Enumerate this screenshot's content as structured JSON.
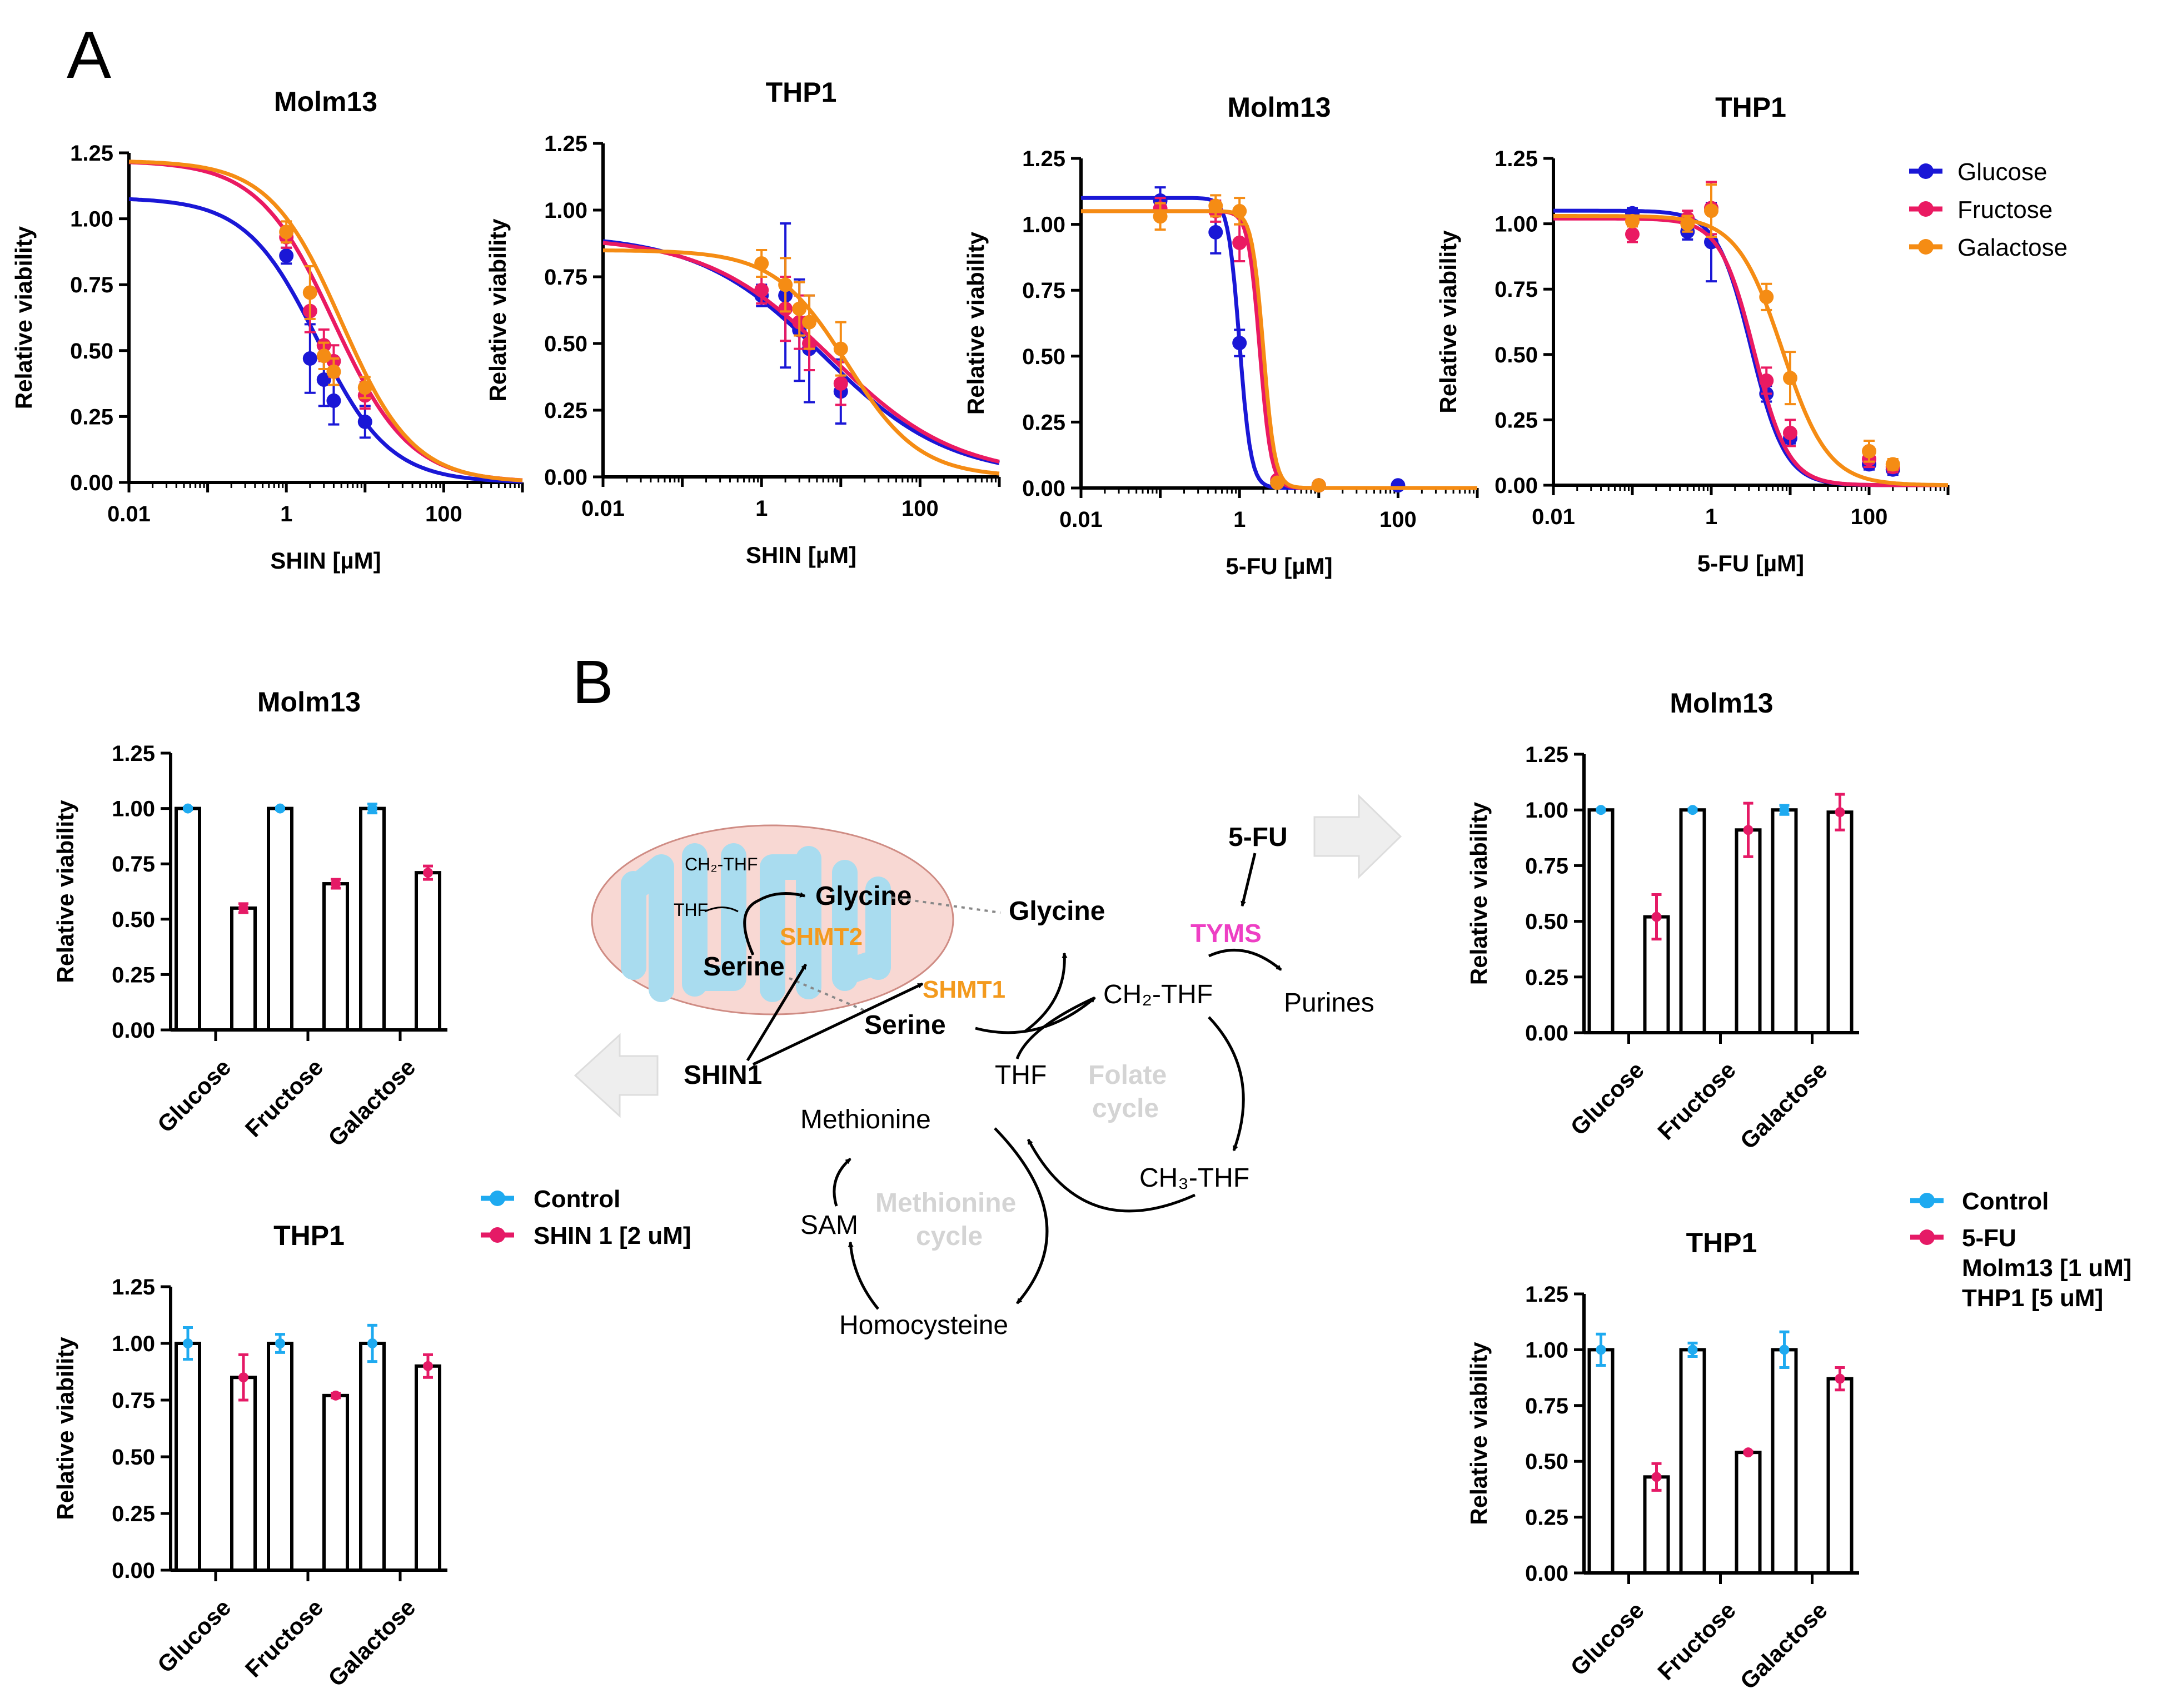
{
  "panel_labels": {
    "a": "A",
    "b": "B"
  },
  "colors": {
    "glucose": "#1a17d6",
    "fructose": "#ea1a62",
    "galactose": "#f58c14",
    "control": "#1eaaf0",
    "treatment": "#e51a66",
    "tyms": "#ee3fc4",
    "shmt": "#f39a1e",
    "faint": "#d4d4d4",
    "mito_fill": "#f8d8d3",
    "mito_edge": "#cf8c84",
    "cristae": "#a9dcef",
    "arrow_fill": "#eeeeee"
  },
  "chart_data": [
    {
      "type": "line",
      "title": "Molm13",
      "xlabel": "SHIN [µM]",
      "ylabel": "Relative viability",
      "xscale": "log",
      "xlim": [
        0.01,
        1000
      ],
      "ylim": [
        0,
        1.25
      ],
      "xticks": [
        0.01,
        1,
        100
      ],
      "xtick_labels": [
        "0.01",
        "1",
        "100"
      ],
      "yticks": [
        0,
        0.25,
        0.5,
        0.75,
        1.0,
        1.25
      ],
      "ytick_labels": [
        "0.00",
        "0.25",
        "0.50",
        "0.75",
        "1.00",
        "1.25"
      ],
      "series": [
        {
          "name": "Glucose",
          "color": "#1a17d6",
          "fit": {
            "top": 1.08,
            "bottom": 0.0,
            "ec50": 2.5,
            "hill": 0.95
          },
          "x": [
            1.0,
            2.0,
            3.0,
            4.0,
            10.0
          ],
          "y": [
            0.86,
            0.47,
            0.39,
            0.31,
            0.23
          ],
          "err": [
            0.03,
            0.13,
            0.1,
            0.09,
            0.06
          ]
        },
        {
          "name": "Fructose",
          "color": "#ea1a62",
          "fit": {
            "top": 1.22,
            "bottom": 0.0,
            "ec50": 4.0,
            "hill": 0.9
          },
          "x": [
            1.0,
            2.0,
            3.0,
            4.0,
            10.0
          ],
          "y": [
            0.93,
            0.65,
            0.52,
            0.46,
            0.33
          ],
          "err": [
            0.04,
            0.08,
            0.06,
            0.06,
            0.05
          ]
        },
        {
          "name": "Galactose",
          "color": "#f58c14",
          "fit": {
            "top": 1.22,
            "bottom": 0.0,
            "ec50": 5.0,
            "hill": 0.95
          },
          "x": [
            1.0,
            2.0,
            3.0,
            4.0,
            10.0
          ],
          "y": [
            0.95,
            0.72,
            0.48,
            0.42,
            0.36
          ],
          "err": [
            0.04,
            0.1,
            0.05,
            0.05,
            0.04
          ]
        }
      ]
    },
    {
      "type": "line",
      "title": "THP1",
      "xlabel": "SHIN [µM]",
      "ylabel": "Relative viability",
      "xscale": "log",
      "xlim": [
        0.01,
        1000
      ],
      "ylim": [
        0,
        1.25
      ],
      "xticks": [
        0.01,
        1,
        100
      ],
      "xtick_labels": [
        "0.01",
        "1",
        "100"
      ],
      "yticks": [
        0,
        0.25,
        0.5,
        0.75,
        1.0,
        1.25
      ],
      "ytick_labels": [
        "0.00",
        "0.25",
        "0.50",
        "0.75",
        "1.00",
        "1.25"
      ],
      "series": [
        {
          "name": "Glucose",
          "color": "#1a17d6",
          "fit": {
            "top": 0.91,
            "bottom": 0.0,
            "ec50": 6.0,
            "hill": 0.55
          },
          "x": [
            1.0,
            2.0,
            3.0,
            4.0,
            10.0
          ],
          "y": [
            0.68,
            0.68,
            0.55,
            0.48,
            0.32
          ],
          "err": [
            0.04,
            0.27,
            0.19,
            0.2,
            0.12
          ]
        },
        {
          "name": "Fructose",
          "color": "#ea1a62",
          "fit": {
            "top": 0.9,
            "bottom": 0.0,
            "ec50": 7.5,
            "hill": 0.55
          },
          "x": [
            1.0,
            2.0,
            3.0,
            4.0,
            10.0
          ],
          "y": [
            0.7,
            0.63,
            0.58,
            0.5,
            0.35
          ],
          "err": [
            0.05,
            0.12,
            0.1,
            0.1,
            0.08
          ]
        },
        {
          "name": "Galactose",
          "color": "#f58c14",
          "fit": {
            "top": 0.85,
            "bottom": 0.0,
            "ec50": 12.0,
            "hill": 0.95
          },
          "x": [
            1.0,
            2.0,
            3.0,
            4.0,
            10.0
          ],
          "y": [
            0.8,
            0.72,
            0.63,
            0.58,
            0.48
          ],
          "err": [
            0.05,
            0.1,
            0.1,
            0.1,
            0.1
          ]
        }
      ]
    },
    {
      "type": "line",
      "title": "Molm13",
      "xlabel": "5-FU [µM]",
      "ylabel": "Relative viability",
      "xscale": "log",
      "xlim": [
        0.01,
        1000
      ],
      "ylim": [
        0,
        1.25
      ],
      "xticks": [
        0.01,
        1,
        100
      ],
      "xtick_labels": [
        "0.01",
        "1",
        "100"
      ],
      "yticks": [
        0,
        0.25,
        0.5,
        0.75,
        1.0,
        1.25
      ],
      "ytick_labels": [
        "0.00",
        "0.25",
        "0.50",
        "0.75",
        "1.00",
        "1.25"
      ],
      "series": [
        {
          "name": "Glucose",
          "color": "#1a17d6",
          "fit": {
            "top": 1.1,
            "bottom": 0.0,
            "ec50": 1.0,
            "hill": 6.0
          },
          "x": [
            0.1,
            0.5,
            1.0,
            3.0,
            10.0,
            100.0
          ],
          "y": [
            1.09,
            0.97,
            0.55,
            0.02,
            0.01,
            0.01
          ],
          "err": [
            0.05,
            0.08,
            0.05,
            0.01,
            0.01,
            0.01
          ]
        },
        {
          "name": "Fructose",
          "color": "#ea1a62",
          "fit": {
            "top": 1.05,
            "bottom": 0.0,
            "ec50": 1.8,
            "hill": 6.0
          },
          "x": [
            0.1,
            0.5,
            1.0,
            3.0,
            10.0
          ],
          "y": [
            1.06,
            1.05,
            0.93,
            0.03,
            0.01
          ],
          "err": [
            0.04,
            0.04,
            0.07,
            0.01,
            0.01
          ]
        },
        {
          "name": "Galactose",
          "color": "#f58c14",
          "fit": {
            "top": 1.05,
            "bottom": 0.0,
            "ec50": 2.0,
            "hill": 6.0
          },
          "x": [
            0.1,
            0.5,
            1.0,
            3.0,
            10.0
          ],
          "y": [
            1.03,
            1.07,
            1.05,
            0.02,
            0.01
          ],
          "err": [
            0.05,
            0.04,
            0.05,
            0.01,
            0.01
          ]
        }
      ]
    },
    {
      "type": "line",
      "title": "THP1",
      "xlabel": "5-FU [µM]",
      "ylabel": "Relative viability",
      "xscale": "log",
      "xlim": [
        0.01,
        1000
      ],
      "ylim": [
        0,
        1.25
      ],
      "xticks": [
        0.01,
        1,
        100
      ],
      "xtick_labels": [
        "0.01",
        "1",
        "100"
      ],
      "yticks": [
        0,
        0.25,
        0.5,
        0.75,
        1.0,
        1.25
      ],
      "ytick_labels": [
        "0.00",
        "0.25",
        "0.50",
        "0.75",
        "1.00",
        "1.25"
      ],
      "series": [
        {
          "name": "Glucose",
          "color": "#1a17d6",
          "fit": {
            "top": 1.05,
            "bottom": 0.0,
            "ec50": 3.2,
            "hill": 2.0
          },
          "x": [
            0.1,
            0.5,
            1.0,
            5.0,
            10.0,
            100.0,
            200.0
          ],
          "y": [
            1.04,
            0.97,
            0.93,
            0.35,
            0.18,
            0.08,
            0.06
          ],
          "err": [
            0.02,
            0.03,
            0.15,
            0.03,
            0.02,
            0.02,
            0.02
          ]
        },
        {
          "name": "Fructose",
          "color": "#ea1a62",
          "fit": {
            "top": 1.02,
            "bottom": 0.0,
            "ec50": 3.5,
            "hill": 2.0
          },
          "x": [
            0.1,
            0.5,
            1.0,
            5.0,
            10.0,
            100.0,
            200.0
          ],
          "y": [
            0.96,
            1.02,
            1.06,
            0.4,
            0.2,
            0.1,
            0.07
          ],
          "err": [
            0.03,
            0.03,
            0.1,
            0.05,
            0.05,
            0.03,
            0.02
          ]
        },
        {
          "name": "Galactose",
          "color": "#f58c14",
          "fit": {
            "top": 1.03,
            "bottom": 0.0,
            "ec50": 8.0,
            "hill": 1.5
          },
          "x": [
            0.1,
            0.5,
            1.0,
            5.0,
            10.0,
            100.0,
            200.0
          ],
          "y": [
            1.01,
            1.0,
            1.05,
            0.72,
            0.41,
            0.13,
            0.08
          ],
          "err": [
            0.02,
            0.03,
            0.1,
            0.05,
            0.1,
            0.04,
            0.02
          ]
        }
      ]
    },
    {
      "type": "bar",
      "title": "Molm13",
      "ylabel": "Relative viability",
      "ylim": [
        0,
        1.25
      ],
      "yticks": [
        0,
        0.25,
        0.5,
        0.75,
        1.0,
        1.25
      ],
      "ytick_labels": [
        "0.00",
        "0.25",
        "0.50",
        "0.75",
        "1.00",
        "1.25"
      ],
      "categories": [
        "Glucose",
        "Fructose",
        "Galactose"
      ],
      "series": [
        {
          "name": "Control",
          "color": "#1eaaf0",
          "values": [
            1.0,
            1.0,
            1.0
          ],
          "err": [
            0.005,
            0.005,
            0.02
          ]
        },
        {
          "name": "SHIN 1 [2 uM]",
          "color": "#e51a66",
          "values": [
            0.55,
            0.66,
            0.71
          ],
          "err": [
            0.02,
            0.02,
            0.03
          ]
        }
      ]
    },
    {
      "type": "bar",
      "title": "THP1",
      "ylabel": "Relative viability",
      "ylim": [
        0,
        1.25
      ],
      "yticks": [
        0,
        0.25,
        0.5,
        0.75,
        1.0,
        1.25
      ],
      "ytick_labels": [
        "0.00",
        "0.25",
        "0.50",
        "0.75",
        "1.00",
        "1.25"
      ],
      "categories": [
        "Glucose",
        "Fructose",
        "Galactose"
      ],
      "series": [
        {
          "name": "Control",
          "color": "#1eaaf0",
          "values": [
            1.0,
            1.0,
            1.0
          ],
          "err": [
            0.07,
            0.04,
            0.08
          ]
        },
        {
          "name": "SHIN 1 [2 uM]",
          "color": "#e51a66",
          "values": [
            0.85,
            0.77,
            0.9
          ],
          "err": [
            0.1,
            0.01,
            0.05
          ]
        }
      ]
    },
    {
      "type": "bar",
      "title": "Molm13",
      "ylabel": "Relative viability",
      "ylim": [
        0,
        1.25
      ],
      "yticks": [
        0,
        0.25,
        0.5,
        0.75,
        1.0,
        1.25
      ],
      "ytick_labels": [
        "0.00",
        "0.25",
        "0.50",
        "0.75",
        "1.00",
        "1.25"
      ],
      "categories": [
        "Glucose",
        "Fructose",
        "Galactose"
      ],
      "series": [
        {
          "name": "Control",
          "color": "#1eaaf0",
          "values": [
            1.0,
            1.0,
            1.0
          ],
          "err": [
            0.005,
            0.005,
            0.02
          ]
        },
        {
          "name": "5-FU",
          "color": "#e51a66",
          "values": [
            0.52,
            0.91,
            0.99
          ],
          "err": [
            0.1,
            0.12,
            0.08
          ]
        }
      ]
    },
    {
      "type": "bar",
      "title": "THP1",
      "ylabel": "Relative viability",
      "ylim": [
        0,
        1.25
      ],
      "yticks": [
        0,
        0.25,
        0.5,
        0.75,
        1.0,
        1.25
      ],
      "ytick_labels": [
        "0.00",
        "0.25",
        "0.50",
        "0.75",
        "1.00",
        "1.25"
      ],
      "categories": [
        "Glucose",
        "Fructose",
        "Galactose"
      ],
      "series": [
        {
          "name": "Control",
          "color": "#1eaaf0",
          "values": [
            1.0,
            1.0,
            1.0
          ],
          "err": [
            0.07,
            0.03,
            0.08
          ]
        },
        {
          "name": "5-FU",
          "color": "#e51a66",
          "values": [
            0.43,
            0.54,
            0.87
          ],
          "err": [
            0.06,
            0.005,
            0.05
          ]
        }
      ]
    }
  ],
  "legends": {
    "curves": [
      "Glucose",
      "Fructose",
      "Galactose"
    ],
    "shin_bars": [
      "Control",
      "SHIN 1 [2 uM]"
    ],
    "fu_bars": [
      "Control",
      "5-FU",
      "Molm13 [1 uM]",
      "THP1 [5 uM]"
    ]
  },
  "pathway": {
    "ch2thf_mito": "CH₂-THF",
    "thf_mito": "THF",
    "glycine_mito": "Glycine",
    "shmt2": "SHMT2",
    "serine_mito": "Serine",
    "glycine": "Glycine",
    "shmt1": "SHMT1",
    "serine": "Serine",
    "shin1": "SHIN1",
    "fu": "5-FU",
    "tyms": "TYMS",
    "purines": "Purines",
    "ch2thf": "CH₂-THF",
    "thf": "THF",
    "folate1": "Folate",
    "folate2": "cycle",
    "ch3thf": "CH₃-THF",
    "methionine": "Methionine",
    "sam": "SAM",
    "meth1": "Methionine",
    "meth2": "cycle",
    "homocysteine": "Homocysteine"
  }
}
